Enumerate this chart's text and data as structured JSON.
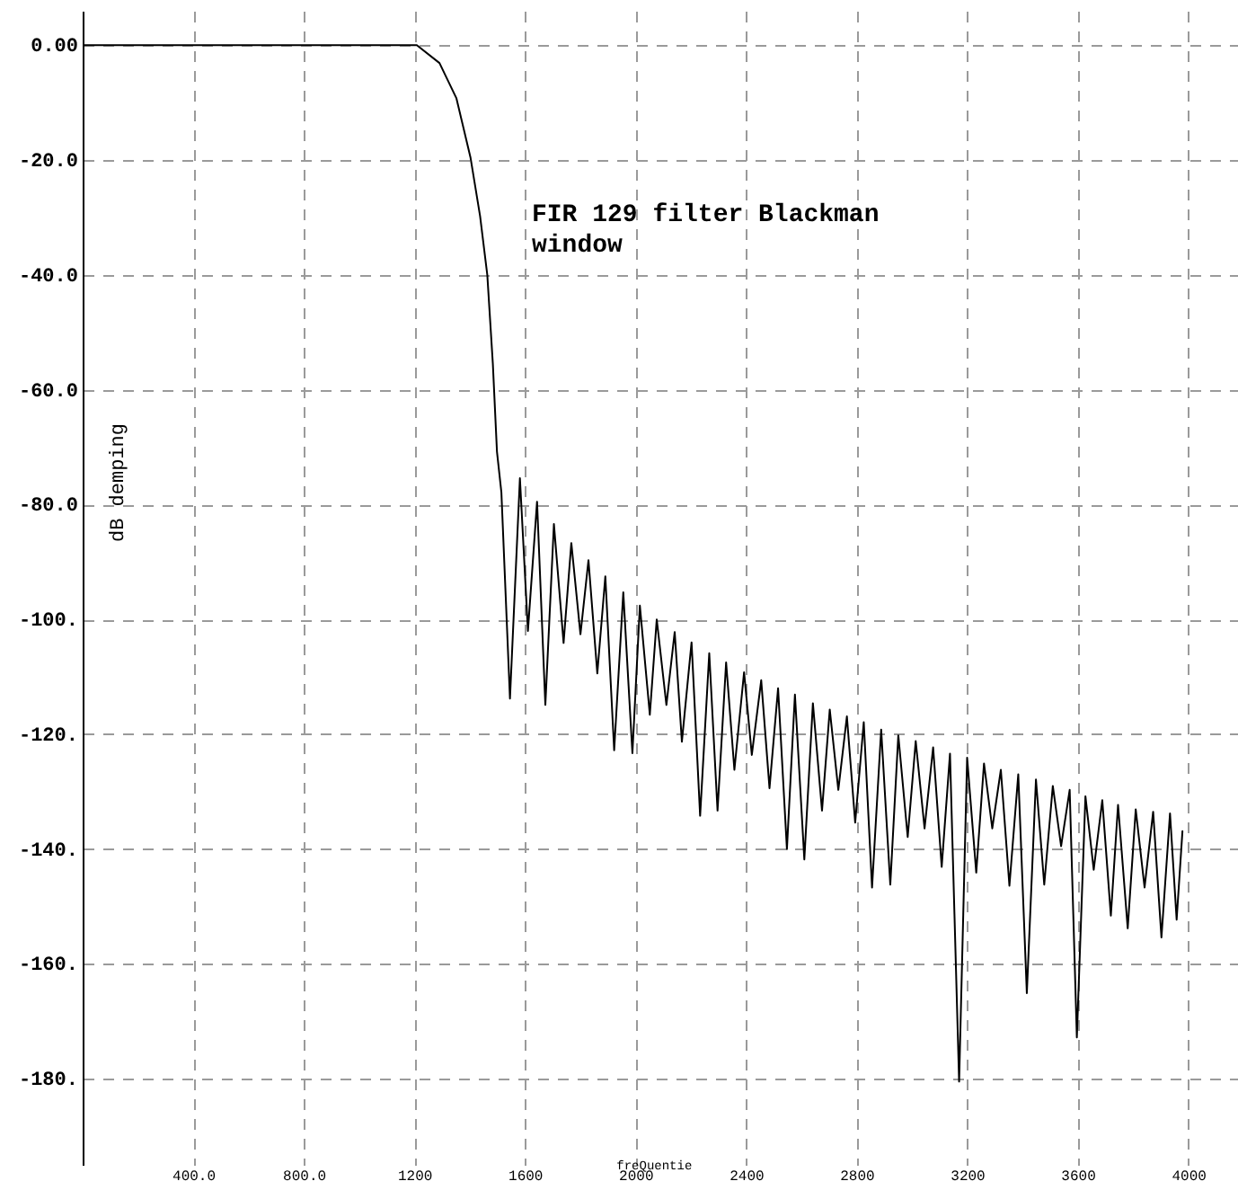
{
  "chart_data": {
    "type": "line",
    "xlabel": "freQuentie",
    "ylabel": "dB demping",
    "annotations": [
      "FIR 129 filter Blackman\nwindow"
    ],
    "xlim": [
      0,
      4180
    ],
    "ylim": [
      -195,
      6
    ],
    "xticks": [
      {
        "value": 400,
        "label": "400.0"
      },
      {
        "value": 800,
        "label": "800.0"
      },
      1200,
      1600,
      2000,
      2400,
      2800,
      3200,
      3600,
      4000
    ],
    "yticks": [
      {
        "value": 0,
        "label": "0.00"
      },
      {
        "value": -20,
        "label": "-20.0"
      },
      {
        "value": -40,
        "label": "-40.0"
      },
      {
        "value": -60,
        "label": "-60.0"
      },
      {
        "value": -80,
        "label": "-80.0"
      },
      {
        "value": -100,
        "label": "-100."
      },
      {
        "value": -120,
        "label": "-120."
      },
      {
        "value": -140,
        "label": "-140."
      },
      {
        "value": -160,
        "label": "-160."
      },
      {
        "value": -180,
        "label": "-180."
      }
    ],
    "grid": true,
    "marker": "none",
    "line_style": "solid",
    "series": [
      {
        "color": "#000000",
        "x": [
          0,
          1209,
          1291,
          1352,
          1403,
          1438,
          1464,
          1484,
          1499,
          1515,
          1546,
          1582,
          1611,
          1644,
          1674,
          1705,
          1740,
          1768,
          1801,
          1830,
          1862,
          1891,
          1923,
          1956,
          1989,
          2016,
          2052,
          2077,
          2112,
          2142,
          2168,
          2203,
          2234,
          2267,
          2297,
          2328,
          2358,
          2393,
          2421,
          2455,
          2485,
          2516,
          2548,
          2577,
          2611,
          2642,
          2675,
          2703,
          2734,
          2765,
          2795,
          2826,
          2856,
          2889,
          2922,
          2951,
          2985,
          3014,
          3046,
          3077,
          3108,
          3138,
          3171,
          3200,
          3233,
          3261,
          3291,
          3322,
          3353,
          3385,
          3416,
          3449,
          3479,
          3510,
          3540,
          3571,
          3597,
          3628,
          3658,
          3689,
          3720,
          3746,
          3781,
          3810,
          3842,
          3873,
          3903,
          3934,
          3958,
          3979
        ],
        "values": [
          0,
          0,
          -3.1,
          -9.2,
          -19.5,
          -29.8,
          -40,
          -55.4,
          -70.8,
          -77.9,
          -113.8,
          -75.4,
          -102,
          -79.5,
          -114.9,
          -83.4,
          -104.1,
          -86.7,
          -102.6,
          -89.7,
          -109.4,
          -92.5,
          -122.8,
          -95.3,
          -123.3,
          -97.6,
          -116.6,
          -100,
          -114.9,
          -102.2,
          -121.3,
          -104,
          -134.2,
          -105.9,
          -133.3,
          -107.5,
          -126.2,
          -109.2,
          -123.6,
          -110.6,
          -129.4,
          -112,
          -140,
          -113.1,
          -141.8,
          -114.6,
          -133.3,
          -115.7,
          -129.7,
          -116.9,
          -135.4,
          -117.9,
          -146.7,
          -119.2,
          -146.2,
          -120.2,
          -137.9,
          -121.2,
          -136.4,
          -122.3,
          -143.1,
          -123.4,
          -180.5,
          -124.1,
          -144.1,
          -125.1,
          -136.4,
          -126.2,
          -146.4,
          -127,
          -165.1,
          -127.9,
          -146.2,
          -129,
          -139.5,
          -129.7,
          -172.8,
          -130.8,
          -143.6,
          -131.5,
          -151.6,
          -132.3,
          -153.8,
          -133.1,
          -146.7,
          -133.5,
          -155.4,
          -133.8,
          -152.3,
          -136.9
        ]
      }
    ]
  }
}
